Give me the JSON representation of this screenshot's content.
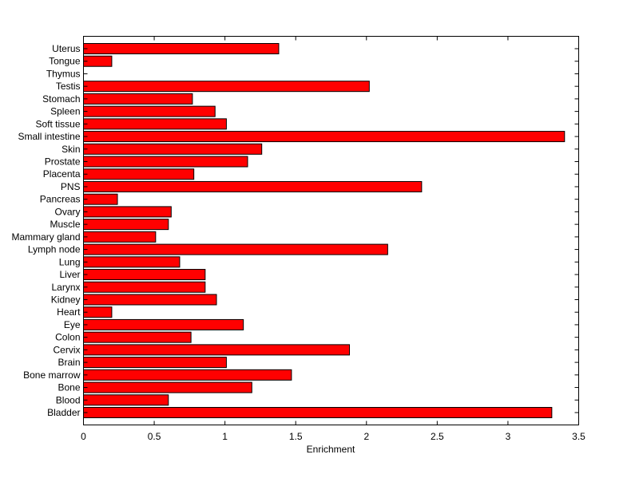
{
  "chart_data": {
    "type": "bar",
    "orientation": "horizontal",
    "title": "",
    "xlabel": "Enrichment",
    "ylabel": "",
    "xlim": [
      0,
      3.5
    ],
    "xticks": [
      "0",
      "0.5",
      "1",
      "1.5",
      "2",
      "2.5",
      "3",
      "3.5"
    ],
    "grid": false,
    "bar_color": "#ff0000",
    "categories": [
      "Uterus",
      "Tongue",
      "Thymus",
      "Testis",
      "Stomach",
      "Spleen",
      "Soft tissue",
      "Small intestine",
      "Skin",
      "Prostate",
      "Placenta",
      "PNS",
      "Pancreas",
      "Ovary",
      "Muscle",
      "Mammary gland",
      "Lymph node",
      "Lung",
      "Liver",
      "Larynx",
      "Kidney",
      "Heart",
      "Eye",
      "Colon",
      "Cervix",
      "Brain",
      "Bone marrow",
      "Bone",
      "Blood",
      "Bladder"
    ],
    "values": [
      1.38,
      0.2,
      0,
      2.02,
      0.77,
      0.93,
      1.01,
      3.4,
      1.26,
      1.16,
      0.78,
      2.39,
      0.24,
      0.62,
      0.6,
      0.51,
      2.15,
      0.68,
      0.86,
      0.86,
      0.94,
      0.2,
      1.13,
      0.76,
      1.88,
      1.01,
      1.47,
      1.19,
      0.6,
      3.31
    ]
  }
}
